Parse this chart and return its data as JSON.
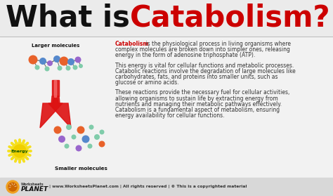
{
  "bg_color": "#f2f2f2",
  "title_black": "What is ",
  "title_red": "Catabolism?",
  "para1_red": "Catabolism",
  "para1_line1_rest": " is the physiological process in living organisms where",
  "para1_line2": "complex molecules are broken down into simpler ones, releasing",
  "para1_line3": "energy in the form of adenosine triphosphate (ATP).",
  "para2_line1": "This energy is vital for cellular functions and metabolic processes.",
  "para2_line2": "Catabolic reactions involve the degradation of large molecules like",
  "para2_line3": "carbohydrates, fats, and proteins into smaller units, such as",
  "para2_line4": "glucose or amino acids.",
  "para3_line1": "These reactions provide the necessary fuel for cellular activities,",
  "para3_line2": "allowing organisms to sustain life by extracting energy from",
  "para3_line3": "nutrients and managing their metabolic pathways effectively.",
  "para3_line4": "Catabolism is a fundamental aspect of metabolism, ensuring",
  "para3_line5": "energy availability for cellular functions.",
  "label_larger": "Larger molecules",
  "label_smaller": "Smaller molecules",
  "label_energy": "Energy",
  "footer_text": "| www.WorksheetsPlanet.com | All rights reserved | © This is a copyrighted material",
  "red_color": "#cc0000",
  "black_color": "#111111",
  "text_color": "#333333",
  "footer_bg_color": "#d8d8d8",
  "title_bg_color": "#ebebeb",
  "content_bg_color": "#f2f2f2"
}
